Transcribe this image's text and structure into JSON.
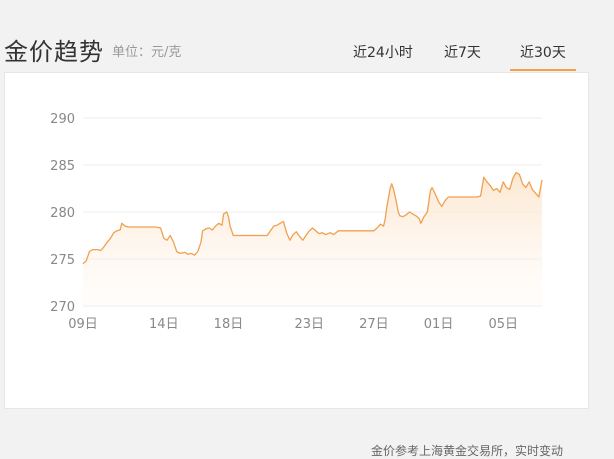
{
  "header": {
    "title": "金价趋势",
    "unit": "单位：元/克",
    "tabs": [
      {
        "label": "近24小时",
        "active": false
      },
      {
        "label": "近7天",
        "active": false
      },
      {
        "label": "近30天",
        "active": true
      }
    ]
  },
  "colors": {
    "accent": "#f5a04b",
    "line": "#f0a050",
    "grid": "#eeeeee",
    "axis_text": "#888888"
  },
  "chart_data": {
    "type": "area",
    "title": "",
    "xlabel": "",
    "ylabel": "",
    "ylim": [
      270,
      290
    ],
    "yticks": [
      270,
      275,
      280,
      285,
      290
    ],
    "xticks": [
      {
        "x": 0,
        "label": "09日"
      },
      {
        "x": 5,
        "label": "14日"
      },
      {
        "x": 9,
        "label": "18日"
      },
      {
        "x": 14,
        "label": "23日"
      },
      {
        "x": 18,
        "label": "27日"
      },
      {
        "x": 22,
        "label": "01日"
      },
      {
        "x": 26,
        "label": "05日"
      }
    ],
    "x_max": 28.4,
    "grid": true,
    "series": [
      {
        "name": "",
        "points": [
          [
            0.0,
            274.5
          ],
          [
            0.2,
            274.8
          ],
          [
            0.4,
            275.8
          ],
          [
            0.6,
            276.0
          ],
          [
            0.9,
            276.0
          ],
          [
            1.1,
            275.9
          ],
          [
            1.3,
            276.3
          ],
          [
            1.5,
            276.8
          ],
          [
            1.7,
            277.2
          ],
          [
            1.9,
            277.8
          ],
          [
            2.1,
            278.0
          ],
          [
            2.3,
            278.1
          ],
          [
            2.4,
            278.8
          ],
          [
            2.6,
            278.5
          ],
          [
            2.8,
            278.4
          ],
          [
            3.2,
            278.4
          ],
          [
            3.6,
            278.4
          ],
          [
            4.0,
            278.4
          ],
          [
            4.5,
            278.4
          ],
          [
            4.8,
            278.3
          ],
          [
            5.0,
            277.2
          ],
          [
            5.2,
            277.0
          ],
          [
            5.4,
            277.5
          ],
          [
            5.6,
            276.8
          ],
          [
            5.8,
            275.8
          ],
          [
            6.0,
            275.6
          ],
          [
            6.3,
            275.7
          ],
          [
            6.5,
            275.5
          ],
          [
            6.7,
            275.6
          ],
          [
            6.9,
            275.4
          ],
          [
            7.1,
            275.8
          ],
          [
            7.3,
            276.8
          ],
          [
            7.4,
            278.0
          ],
          [
            7.6,
            278.2
          ],
          [
            7.8,
            278.3
          ],
          [
            8.0,
            278.1
          ],
          [
            8.2,
            278.5
          ],
          [
            8.4,
            278.8
          ],
          [
            8.6,
            278.6
          ],
          [
            8.7,
            279.8
          ],
          [
            8.9,
            280.0
          ],
          [
            9.0,
            279.5
          ],
          [
            9.1,
            278.5
          ],
          [
            9.3,
            277.5
          ],
          [
            9.6,
            277.5
          ],
          [
            10.0,
            277.5
          ],
          [
            10.5,
            277.5
          ],
          [
            11.0,
            277.5
          ],
          [
            11.4,
            277.5
          ],
          [
            11.6,
            278.0
          ],
          [
            11.8,
            278.5
          ],
          [
            12.0,
            278.6
          ],
          [
            12.2,
            278.8
          ],
          [
            12.4,
            279.0
          ],
          [
            12.6,
            277.8
          ],
          [
            12.8,
            277.0
          ],
          [
            13.0,
            277.6
          ],
          [
            13.2,
            277.9
          ],
          [
            13.4,
            277.4
          ],
          [
            13.6,
            277.0
          ],
          [
            13.8,
            277.5
          ],
          [
            14.0,
            278.0
          ],
          [
            14.2,
            278.3
          ],
          [
            14.4,
            278.0
          ],
          [
            14.6,
            277.7
          ],
          [
            14.8,
            277.8
          ],
          [
            15.0,
            277.6
          ],
          [
            15.3,
            277.8
          ],
          [
            15.5,
            277.6
          ],
          [
            15.8,
            278.0
          ],
          [
            16.2,
            278.0
          ],
          [
            16.6,
            278.0
          ],
          [
            17.0,
            278.0
          ],
          [
            17.4,
            278.0
          ],
          [
            17.8,
            278.0
          ],
          [
            18.0,
            278.0
          ],
          [
            18.2,
            278.3
          ],
          [
            18.4,
            278.7
          ],
          [
            18.6,
            278.5
          ],
          [
            18.7,
            279.3
          ],
          [
            18.8,
            280.5
          ],
          [
            18.9,
            281.5
          ],
          [
            19.0,
            282.5
          ],
          [
            19.1,
            283.0
          ],
          [
            19.2,
            282.5
          ],
          [
            19.3,
            281.8
          ],
          [
            19.4,
            281.0
          ],
          [
            19.5,
            280.0
          ],
          [
            19.6,
            279.6
          ],
          [
            19.8,
            279.5
          ],
          [
            20.0,
            279.7
          ],
          [
            20.2,
            280.0
          ],
          [
            20.4,
            279.8
          ],
          [
            20.6,
            279.6
          ],
          [
            20.8,
            279.3
          ],
          [
            20.9,
            278.8
          ],
          [
            21.1,
            279.5
          ],
          [
            21.3,
            280.0
          ],
          [
            21.5,
            282.3
          ],
          [
            21.6,
            282.6
          ],
          [
            21.8,
            281.9
          ],
          [
            22.0,
            281.1
          ],
          [
            22.2,
            280.6
          ],
          [
            22.4,
            281.2
          ],
          [
            22.6,
            281.6
          ],
          [
            22.8,
            281.6
          ],
          [
            23.2,
            281.6
          ],
          [
            23.6,
            281.6
          ],
          [
            24.0,
            281.6
          ],
          [
            24.4,
            281.6
          ],
          [
            24.6,
            281.7
          ],
          [
            24.8,
            283.7
          ],
          [
            25.0,
            283.2
          ],
          [
            25.2,
            282.8
          ],
          [
            25.4,
            282.3
          ],
          [
            25.6,
            282.5
          ],
          [
            25.8,
            282.1
          ],
          [
            26.0,
            283.2
          ],
          [
            26.2,
            282.6
          ],
          [
            26.4,
            282.4
          ],
          [
            26.6,
            283.6
          ],
          [
            26.8,
            284.2
          ],
          [
            27.0,
            284.0
          ],
          [
            27.2,
            283.0
          ],
          [
            27.4,
            282.6
          ],
          [
            27.6,
            283.2
          ],
          [
            27.8,
            282.4
          ],
          [
            28.0,
            282.0
          ],
          [
            28.2,
            281.6
          ],
          [
            28.4,
            283.4
          ],
          [
            28.6,
            283.5
          ],
          [
            28.8,
            283.2
          ],
          [
            29.0,
            283.0
          ]
        ]
      }
    ]
  },
  "footer": {
    "note": "金价参考上海黄金交易所，实时变动"
  }
}
